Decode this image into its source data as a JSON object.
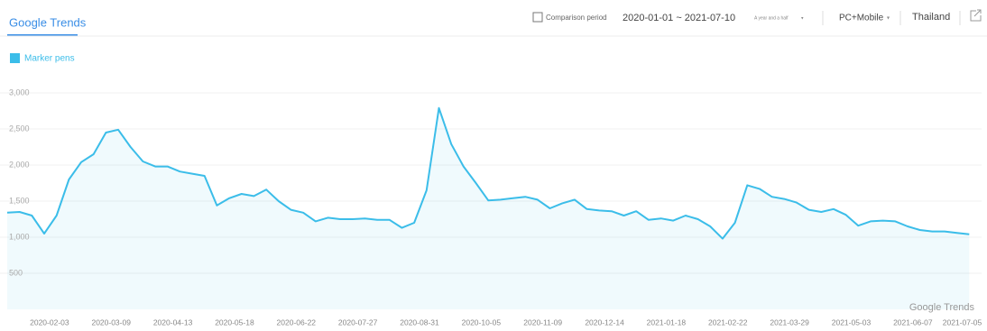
{
  "header": {
    "brand": "Google Trends",
    "comparison": "Comparison period",
    "date_range": "2020-01-01 ~ 2021-07-10",
    "period": "A year and a half",
    "device": "PC+Mobile",
    "region": "Thailand"
  },
  "chart_data": {
    "type": "line",
    "watermark": "Google Trends",
    "x": [
      "2020-01-10",
      "2020-01-17",
      "2020-01-24",
      "2020-01-31",
      "2020-02-07",
      "2020-02-14",
      "2020-02-21",
      "2020-02-28",
      "2020-03-06",
      "2020-03-13",
      "2020-03-20",
      "2020-03-27",
      "2020-04-03",
      "2020-04-10",
      "2020-04-17",
      "2020-04-24",
      "2020-05-01",
      "2020-05-08",
      "2020-05-15",
      "2020-05-22",
      "2020-05-29",
      "2020-06-05",
      "2020-06-12",
      "2020-06-19",
      "2020-06-26",
      "2020-07-03",
      "2020-07-10",
      "2020-07-17",
      "2020-07-24",
      "2020-07-31",
      "2020-08-07",
      "2020-08-14",
      "2020-08-21",
      "2020-08-28",
      "2020-09-04",
      "2020-09-11",
      "2020-09-18",
      "2020-09-25",
      "2020-10-02",
      "2020-10-09",
      "2020-10-16",
      "2020-10-23",
      "2020-10-30",
      "2020-11-06",
      "2020-11-13",
      "2020-11-20",
      "2020-11-27",
      "2020-12-04",
      "2020-12-11",
      "2020-12-18",
      "2020-12-25",
      "2021-01-01",
      "2021-01-08",
      "2021-01-15",
      "2021-01-22",
      "2021-01-29",
      "2021-02-05",
      "2021-02-12",
      "2021-02-19",
      "2021-02-26",
      "2021-03-05",
      "2021-03-12",
      "2021-03-19",
      "2021-03-26",
      "2021-04-02",
      "2021-04-09",
      "2021-04-16",
      "2021-04-23",
      "2021-04-30",
      "2021-05-07",
      "2021-05-14",
      "2021-05-21",
      "2021-05-28",
      "2021-06-04",
      "2021-06-11",
      "2021-06-18",
      "2021-06-25",
      "2021-07-02",
      "2021-07-09"
    ],
    "series": [
      {
        "name": "Marker pens",
        "color": "#3bbde9",
        "values": [
          1340,
          1350,
          1300,
          1050,
          1300,
          1800,
          2040,
          2150,
          2450,
          2490,
          2250,
          2050,
          1980,
          1980,
          1910,
          1880,
          1850,
          1440,
          1540,
          1600,
          1570,
          1660,
          1500,
          1380,
          1340,
          1220,
          1270,
          1250,
          1250,
          1260,
          1240,
          1240,
          1130,
          1200,
          1650,
          2790,
          2290,
          1980,
          1750,
          1510,
          1520,
          1540,
          1560,
          1520,
          1400,
          1470,
          1520,
          1390,
          1370,
          1360,
          1300,
          1360,
          1240,
          1260,
          1230,
          1300,
          1250,
          1150,
          980,
          1200,
          1720,
          1670,
          1560,
          1530,
          1480,
          1380,
          1350,
          1390,
          1310,
          1160,
          1220,
          1230,
          1220,
          1150,
          1100,
          1080,
          1080,
          1060,
          1040
        ]
      }
    ],
    "xlim": [
      "2020-01-10",
      "2021-07-16"
    ],
    "xticks": [
      "2020-02-03",
      "2020-03-09",
      "2020-04-13",
      "2020-05-18",
      "2020-06-22",
      "2020-07-27",
      "2020-08-31",
      "2020-10-05",
      "2020-11-09",
      "2020-12-14",
      "2021-01-18",
      "2021-02-22",
      "2021-03-29",
      "2021-05-03",
      "2021-06-07",
      "2021-07-05"
    ],
    "ylim": [
      0,
      3000
    ],
    "yticks": [
      {
        "value": 500,
        "label": "500"
      },
      {
        "value": 1000,
        "label": "1,000"
      },
      {
        "value": 1500,
        "label": "1,500"
      },
      {
        "value": 2000,
        "label": "2,000"
      },
      {
        "value": 2500,
        "label": "2,500"
      },
      {
        "value": 3000,
        "label": "3,000"
      }
    ],
    "grid": true
  }
}
